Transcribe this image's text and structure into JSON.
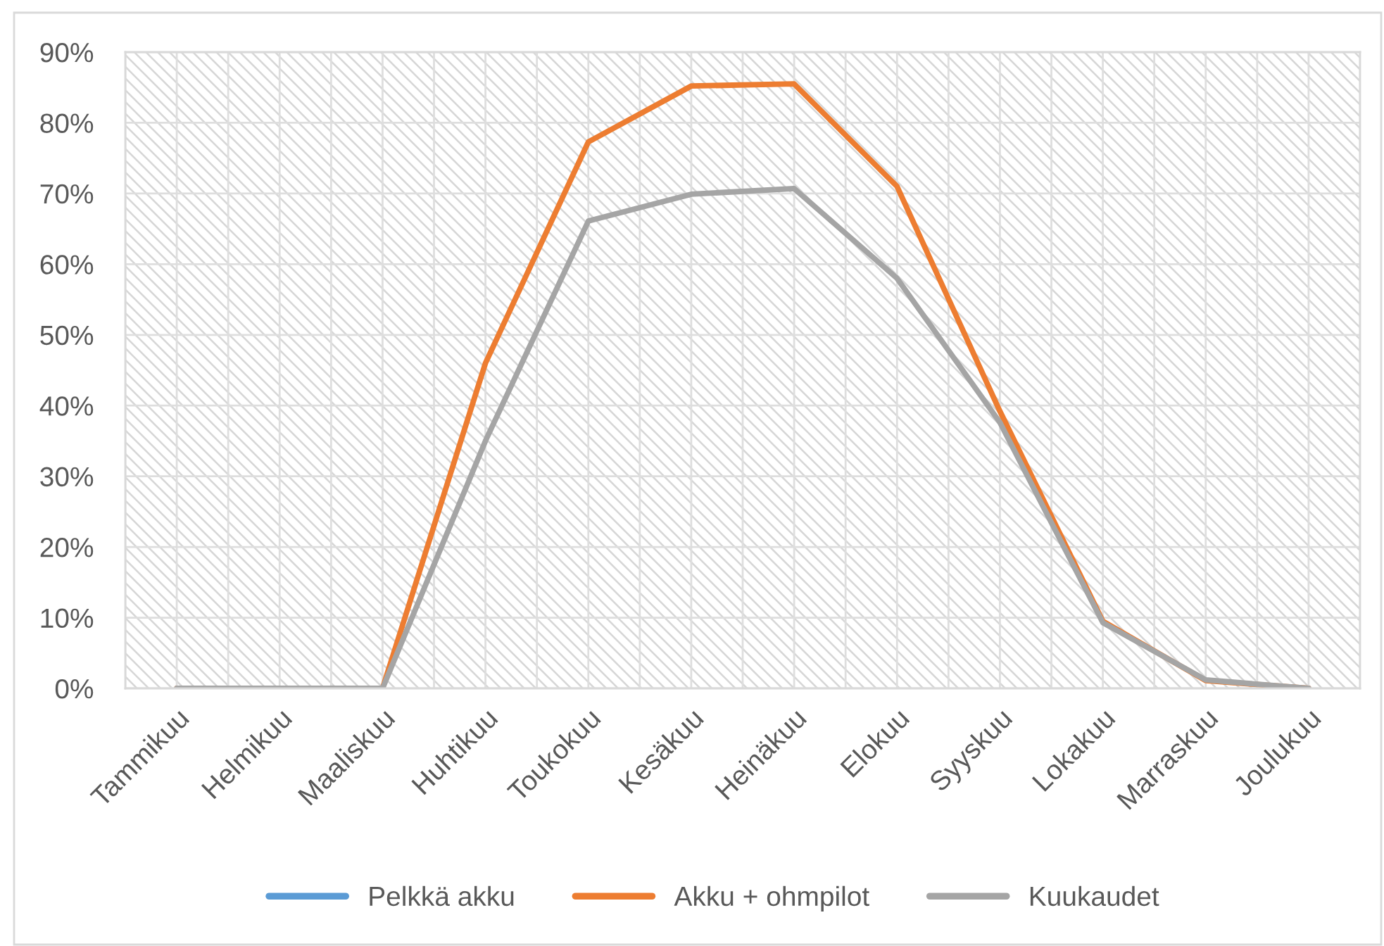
{
  "chart_data": {
    "type": "line",
    "categories": [
      "Tammikuu",
      "Helmikuu",
      "Maaliskuu",
      "Huhtikuu",
      "Toukokuu",
      "Kesäkuu",
      "Heinäkuu",
      "Elokuu",
      "Syyskuu",
      "Lokakuu",
      "Marraskuu",
      "Joulukuu"
    ],
    "series": [
      {
        "name": "Pelkkä akku",
        "color": "#5b9bd5",
        "values": [
          null,
          null,
          null,
          null,
          null,
          null,
          null,
          null,
          null,
          null,
          null,
          null
        ]
      },
      {
        "name": "Akku + ohmpilot",
        "color": "#ed7d31",
        "values": [
          0,
          0,
          0,
          46,
          77.3,
          85.2,
          85.5,
          71,
          39.2,
          9.5,
          1.1,
          0
        ]
      },
      {
        "name": "Kuukaudet",
        "color": "#a5a5a5",
        "values": [
          0,
          0,
          0,
          35,
          66.1,
          69.9,
          70.7,
          58,
          37.6,
          9.3,
          1.2,
          0
        ]
      }
    ],
    "ylim": [
      0,
      90
    ],
    "yticks": [
      {
        "value": 0,
        "label": "0%"
      },
      {
        "value": 10,
        "label": "10%"
      },
      {
        "value": 20,
        "label": "20%"
      },
      {
        "value": 30,
        "label": "30%"
      },
      {
        "value": 40,
        "label": "40%"
      },
      {
        "value": 50,
        "label": "50%"
      },
      {
        "value": 60,
        "label": "60%"
      },
      {
        "value": 70,
        "label": "70%"
      },
      {
        "value": 80,
        "label": "80%"
      },
      {
        "value": 90,
        "label": "90%"
      }
    ],
    "grid": true,
    "legend": "bottom",
    "line_style": "solid",
    "marker": "none"
  }
}
